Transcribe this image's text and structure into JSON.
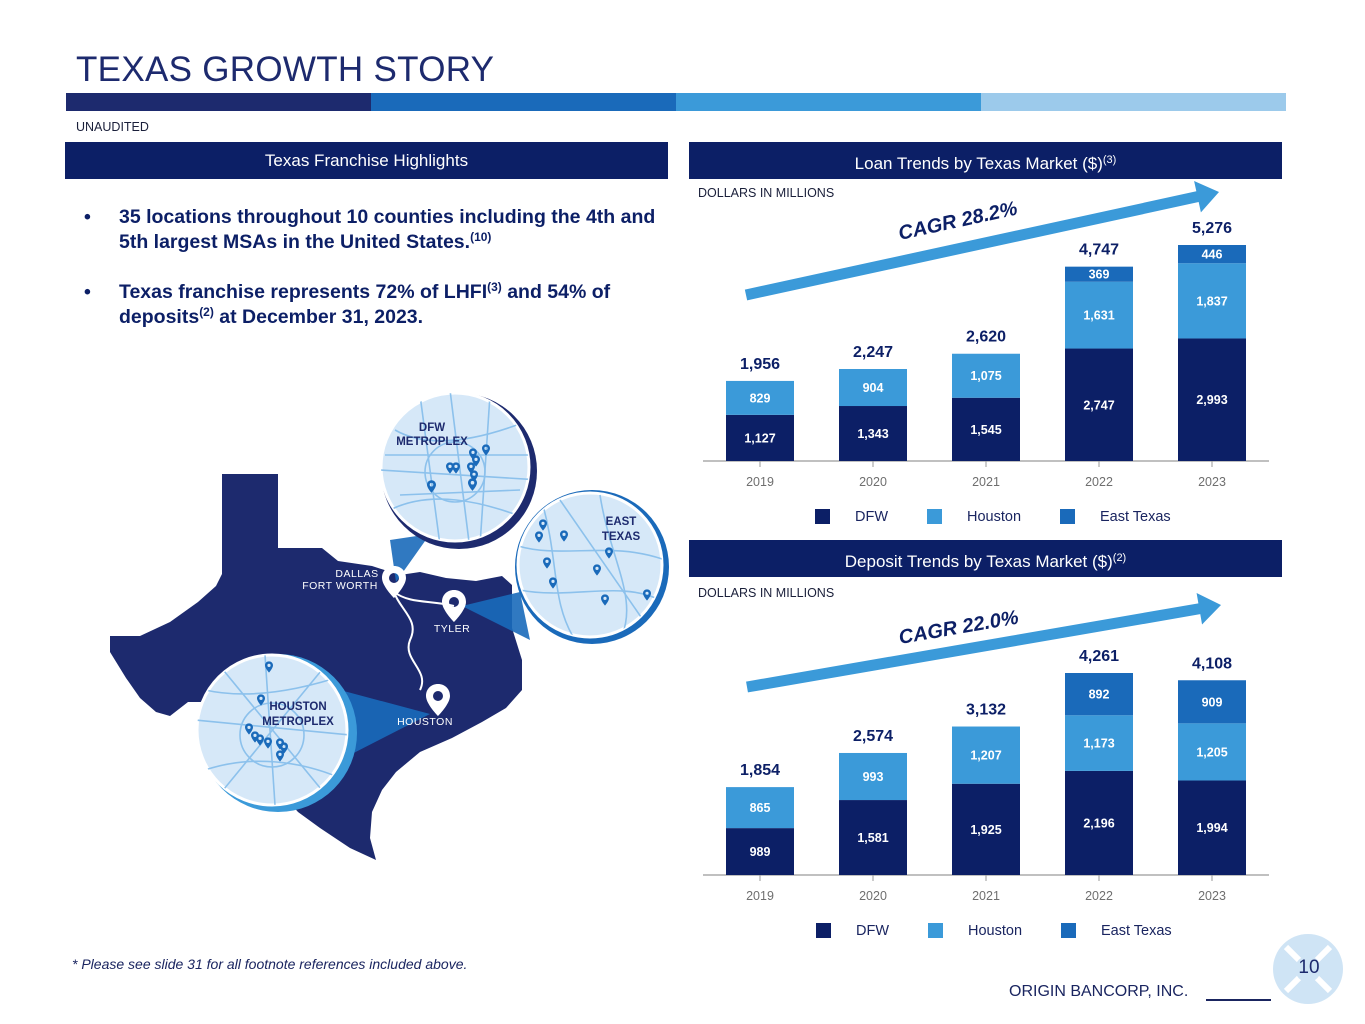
{
  "page": {
    "title": "TEXAS GROWTH STORY",
    "subtitle": "UNAUDITED",
    "footnote": "* Please see slide 31 for all footnote references included above.",
    "company": "ORIGIN BANCORP, INC.",
    "page_number": "10"
  },
  "band_colors": [
    "#1d2a6e",
    "#1a6aba",
    "#3b9ad9",
    "#9ccaeb"
  ],
  "highlights": {
    "header": "Texas Franchise Highlights",
    "bullet_symbol": "•",
    "bullets": [
      {
        "text": "35 locations throughout 10 counties including the 4th and 5th largest MSAs in the United States.",
        "ref": "(10)"
      },
      {
        "text_1": "Texas franchise represents 72% of LHFI",
        "ref_1": "(3)",
        "text_2": " and 54% of deposits",
        "ref_2": "(2)",
        "text_3": " at December 31, 2023."
      }
    ]
  },
  "map": {
    "dfw_label_1": "DFW",
    "dfw_label_2": "METROPLEX",
    "east_label_1": "EAST",
    "east_label_2": "TEXAS",
    "houston_label_1": "HOUSTON",
    "houston_label_2": "METROPLEX",
    "city_dallas_1": "DALLAS",
    "city_dallas_2": "FORT WORTH",
    "city_tyler": "TYLER",
    "city_houston": "HOUSTON",
    "colors": {
      "state": "#1d2a6e",
      "circle": "#d6e8f8",
      "road": "#8cc1ec",
      "pin": "#1a6aba"
    }
  },
  "colors": {
    "dfw": "#0c1f66",
    "houston": "#3b9ad9",
    "east_texas": "#1a6aba",
    "arrow": "#3b9ad9"
  },
  "chart_data": [
    {
      "type": "bar",
      "stacked": true,
      "title": "Loan Trends by Texas Market ($)",
      "title_ref": "(3)",
      "units_label": "DOLLARS IN MILLIONS",
      "cagr_label": "CAGR 28.2%",
      "categories": [
        "2019",
        "2020",
        "2021",
        "2022",
        "2023"
      ],
      "series": [
        {
          "name": "DFW",
          "values": [
            1127,
            1343,
            1545,
            2747,
            2993
          ]
        },
        {
          "name": "Houston",
          "values": [
            829,
            904,
            1075,
            1631,
            1837
          ]
        },
        {
          "name": "East Texas",
          "values": [
            0,
            0,
            0,
            369,
            446
          ]
        }
      ],
      "value_labels": [
        [
          "1,127",
          "1,343",
          "1,545",
          "2,747",
          "2,993"
        ],
        [
          "829",
          "904",
          "1,075",
          "1,631",
          "1,837"
        ],
        [
          "",
          "",
          "",
          "369",
          "446"
        ]
      ],
      "totals": [
        1956,
        2247,
        2620,
        4747,
        5276
      ],
      "total_labels": [
        "1,956",
        "2,247",
        "2,620",
        "4,747",
        "5,276"
      ],
      "ylim": [
        0,
        5276
      ],
      "legend": [
        "DFW",
        "Houston",
        "East Texas"
      ]
    },
    {
      "type": "bar",
      "stacked": true,
      "title": "Deposit Trends by Texas Market ($)",
      "title_ref": "(2)",
      "units_label": "DOLLARS IN MILLIONS",
      "cagr_label": "CAGR 22.0%",
      "categories": [
        "2019",
        "2020",
        "2021",
        "2022",
        "2023"
      ],
      "series": [
        {
          "name": "DFW",
          "values": [
            989,
            1581,
            1925,
            2196,
            1994
          ]
        },
        {
          "name": "Houston",
          "values": [
            865,
            993,
            1207,
            1173,
            1205
          ]
        },
        {
          "name": "East Texas",
          "values": [
            0,
            0,
            0,
            892,
            909
          ]
        }
      ],
      "value_labels": [
        [
          "989",
          "1,581",
          "1,925",
          "2,196",
          "1,994"
        ],
        [
          "865",
          "993",
          "1,207",
          "1,173",
          "1,205"
        ],
        [
          "",
          "",
          "",
          "892",
          "909"
        ]
      ],
      "totals": [
        1854,
        2574,
        3132,
        4261,
        4108
      ],
      "total_labels": [
        "1,854",
        "2,574",
        "3,132",
        "4,261",
        "4,108"
      ],
      "ylim": [
        0,
        4261
      ],
      "legend": [
        "DFW",
        "Houston",
        "East Texas"
      ]
    }
  ]
}
